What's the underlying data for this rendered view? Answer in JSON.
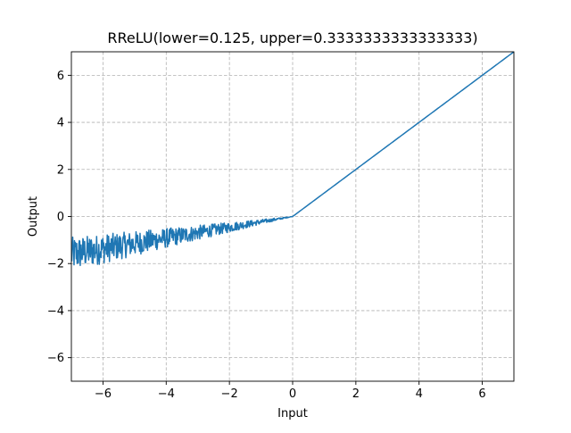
{
  "chart_data": {
    "type": "line",
    "title": "RReLU(lower=0.125, upper=0.3333333333333333)",
    "xlabel": "Input",
    "ylabel": "Output",
    "xlim": [
      -7,
      7
    ],
    "ylim": [
      -7,
      7
    ],
    "grid": true,
    "xticks": [
      -6,
      -4,
      -2,
      0,
      2,
      4,
      6
    ],
    "yticks": [
      -6,
      -4,
      -2,
      0,
      2,
      4,
      6
    ],
    "xtick_labels": [
      "−6",
      "−4",
      "−2",
      "0",
      "2",
      "4",
      "6"
    ],
    "ytick_labels": [
      "−6",
      "−4",
      "−2",
      "0",
      "2",
      "4",
      "6"
    ],
    "series": [
      {
        "color": "#1f77b4",
        "lower": 0.125,
        "upper": 0.3333333333333333,
        "x": [
          -7,
          -6,
          -5,
          -4,
          -3,
          -2,
          -1,
          0,
          1,
          2,
          3,
          4,
          5,
          6,
          7
        ],
        "y_min": [
          -2.33,
          -2.0,
          -1.67,
          -1.33,
          -1.0,
          -0.67,
          -0.33,
          0,
          1,
          2,
          3,
          4,
          5,
          6,
          7
        ],
        "y_max": [
          -0.875,
          -0.75,
          -0.625,
          -0.5,
          -0.375,
          -0.25,
          -0.125,
          0,
          1,
          2,
          3,
          4,
          5,
          6,
          7
        ]
      }
    ]
  }
}
